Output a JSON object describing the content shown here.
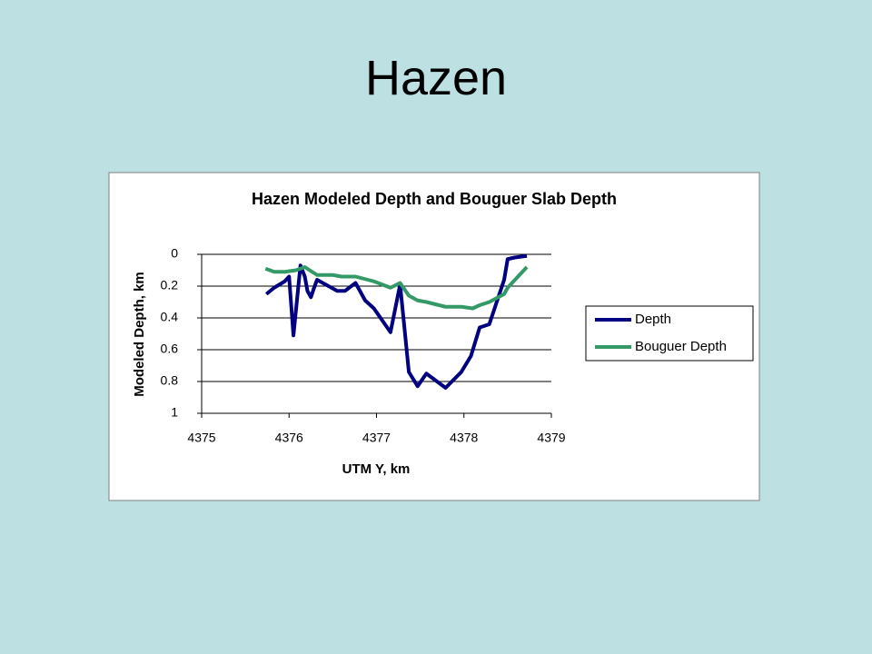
{
  "title": "Hazen",
  "chart_data": {
    "type": "line",
    "title": "Hazen Modeled Depth and Bouguer Slab Depth",
    "x_label": "UTM Y, km",
    "y_label": "Modeled Depth, km",
    "xlim": [
      4375,
      4379
    ],
    "xticks": [
      4375,
      4376,
      4377,
      4378,
      4379
    ],
    "ylim": [
      0,
      1
    ],
    "yticks": [
      0,
      0.2,
      0.4,
      0.6,
      0.8,
      1
    ],
    "y_inverted": true,
    "grid": true,
    "legend": "right",
    "series": [
      {
        "name": "Depth",
        "color": "#000080",
        "x": [
          4375.74,
          4375.83,
          4375.95,
          4376.0,
          4376.05,
          4376.13,
          4376.18,
          4376.21,
          4376.25,
          4376.28,
          4376.32,
          4376.55,
          4376.64,
          4376.76,
          4376.87,
          4376.97,
          4377.16,
          4377.27,
          4377.37,
          4377.47,
          4377.57,
          4377.79,
          4377.97,
          4378.08,
          4378.18,
          4378.29,
          4378.46,
          4378.5,
          4378.58,
          4378.72
        ],
        "values": [
          0.25,
          0.21,
          0.17,
          0.14,
          0.51,
          0.07,
          0.14,
          0.23,
          0.27,
          0.22,
          0.16,
          0.23,
          0.23,
          0.18,
          0.29,
          0.34,
          0.49,
          0.19,
          0.74,
          0.83,
          0.75,
          0.84,
          0.74,
          0.64,
          0.46,
          0.44,
          0.16,
          0.03,
          0.02,
          0.01
        ]
      },
      {
        "name": "Bouguer Depth",
        "color": "#339966",
        "x": [
          4375.73,
          4375.83,
          4375.95,
          4376.08,
          4376.18,
          4376.32,
          4376.5,
          4376.6,
          4376.76,
          4376.97,
          4377.16,
          4377.27,
          4377.37,
          4377.47,
          4377.57,
          4377.79,
          4377.97,
          4378.1,
          4378.18,
          4378.29,
          4378.46,
          4378.5,
          4378.72
        ],
        "values": [
          0.09,
          0.11,
          0.11,
          0.1,
          0.08,
          0.13,
          0.13,
          0.14,
          0.14,
          0.17,
          0.21,
          0.18,
          0.26,
          0.29,
          0.3,
          0.33,
          0.33,
          0.34,
          0.32,
          0.3,
          0.25,
          0.21,
          0.08
        ]
      }
    ]
  }
}
